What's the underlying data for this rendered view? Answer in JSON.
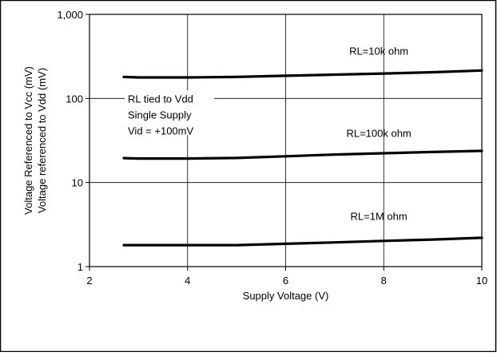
{
  "chart_data": {
    "type": "line",
    "title": "",
    "xlabel": "Supply Voltage (V)",
    "ylabel_lines": [
      "Voltage Referenced to Vcc (mV)",
      "Voltage referenced to Vdd (mV)"
    ],
    "xlim": [
      2,
      10
    ],
    "ylim": [
      1,
      1000
    ],
    "yscale": "log",
    "grid": true,
    "x_ticks": [
      2,
      4,
      6,
      8,
      10
    ],
    "x_tick_labels": [
      "2",
      "4",
      "6",
      "8",
      "10"
    ],
    "y_ticks": [
      1,
      10,
      100,
      1000
    ],
    "y_tick_labels": [
      "1",
      "10",
      "100",
      "1,000"
    ],
    "annotation_lines": [
      "RL tied to Vdd",
      "Single Supply",
      "Vid = +100mV"
    ],
    "series": [
      {
        "name": "RL=10k ohm",
        "x": [
          2.7,
          3,
          4,
          5,
          6,
          7,
          8,
          9,
          10
        ],
        "y": [
          180,
          178,
          178,
          180,
          186,
          192,
          198,
          205,
          215
        ]
      },
      {
        "name": "RL=100k ohm",
        "x": [
          2.7,
          3,
          4,
          5,
          6,
          7,
          8,
          9,
          10
        ],
        "y": [
          19.5,
          19.3,
          19.3,
          19.6,
          20.5,
          21.5,
          22.3,
          23.1,
          23.8
        ]
      },
      {
        "name": "RL=1M ohm",
        "x": [
          2.7,
          3,
          4,
          5,
          6,
          7,
          8,
          9,
          10
        ],
        "y": [
          1.8,
          1.8,
          1.8,
          1.8,
          1.87,
          1.94,
          2.02,
          2.1,
          2.2
        ]
      }
    ],
    "series_label_x": [
      7.9,
      7.9,
      7.9
    ],
    "series_label_y": [
      330,
      35,
      3.6
    ]
  }
}
